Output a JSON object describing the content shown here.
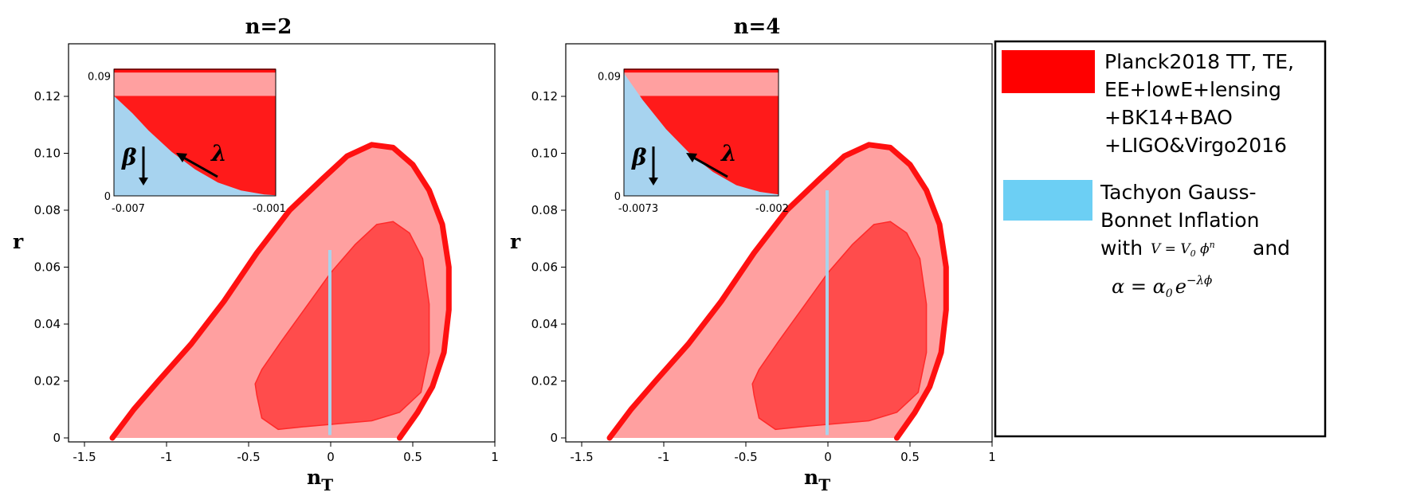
{
  "colors": {
    "outer_region": "#ffa0a0",
    "outer_border": "#ff1010",
    "inner_region": "#ff4c4c",
    "model_line": "#a9d3ec",
    "model_fill": "#a7d3ef",
    "legend_planck_swatch": "#ff0000",
    "legend_model_swatch": "#6ccff4"
  },
  "chart_data": [
    {
      "type": "area",
      "title": "n=2",
      "xlabel_base": "n",
      "xlabel_sub": "T",
      "ylabel": "r",
      "xlim": [
        -1.6,
        1.0
      ],
      "ylim": [
        0,
        0.12
      ],
      "x_ticks": [
        "-1.5",
        "-1",
        "-0.5",
        "0",
        "0.5",
        "1"
      ],
      "x_tick_values": [
        -1.5,
        -1,
        -0.5,
        0,
        0.5,
        1
      ],
      "y_ticks": [
        "0",
        "0.02",
        "0.04",
        "0.06",
        "0.08",
        "0.10",
        "0.12"
      ],
      "y_tick_values": [
        0,
        0.02,
        0.04,
        0.06,
        0.08,
        0.1,
        0.12
      ],
      "series": [
        {
          "role": "outer-contour",
          "points": [
            [
              -1.33,
              0.0
            ],
            [
              -1.2,
              0.01
            ],
            [
              -1.05,
              0.02
            ],
            [
              -0.85,
              0.033
            ],
            [
              -0.65,
              0.048
            ],
            [
              -0.45,
              0.065
            ],
            [
              -0.25,
              0.08
            ],
            [
              -0.05,
              0.091
            ],
            [
              0.1,
              0.099
            ],
            [
              0.25,
              0.103
            ],
            [
              0.38,
              0.102
            ],
            [
              0.5,
              0.096
            ],
            [
              0.6,
              0.087
            ],
            [
              0.68,
              0.075
            ],
            [
              0.72,
              0.06
            ],
            [
              0.72,
              0.045
            ],
            [
              0.69,
              0.03
            ],
            [
              0.62,
              0.018
            ],
            [
              0.53,
              0.009
            ],
            [
              0.42,
              0.0
            ]
          ]
        },
        {
          "role": "inner-contour",
          "points": [
            [
              -0.45,
              0.015
            ],
            [
              -0.42,
              0.007
            ],
            [
              -0.32,
              0.003
            ],
            [
              -0.15,
              0.004
            ],
            [
              0.05,
              0.005
            ],
            [
              0.25,
              0.006
            ],
            [
              0.42,
              0.009
            ],
            [
              0.55,
              0.016
            ],
            [
              0.6,
              0.03
            ],
            [
              0.6,
              0.047
            ],
            [
              0.56,
              0.063
            ],
            [
              0.48,
              0.072
            ],
            [
              0.38,
              0.076
            ],
            [
              0.28,
              0.075
            ],
            [
              0.15,
              0.068
            ],
            [
              0.0,
              0.058
            ],
            [
              -0.15,
              0.046
            ],
            [
              -0.3,
              0.034
            ],
            [
              -0.42,
              0.024
            ],
            [
              -0.46,
              0.019
            ]
          ]
        },
        {
          "role": "model-line",
          "points": [
            [
              -0.005,
              0.001
            ],
            [
              -0.005,
              0.066
            ]
          ]
        }
      ],
      "inset": {
        "x_ticks": [
          "-0.007",
          "-0.001"
        ],
        "x_tick_values": [
          -0.007,
          -0.001
        ],
        "y_ticks": [
          "0.09",
          "0"
        ],
        "y_tick_values": [
          0.09,
          0
        ],
        "xlim": [
          -0.0075,
          -0.0005
        ],
        "ylim": [
          0,
          0.095
        ],
        "curve_points": [
          [
            -0.0075,
            0.075
          ],
          [
            -0.0067,
            0.062
          ],
          [
            -0.006,
            0.049
          ],
          [
            -0.005,
            0.033
          ],
          [
            -0.004,
            0.02
          ],
          [
            -0.003,
            0.01
          ],
          [
            -0.002,
            0.004
          ],
          [
            -0.001,
            0.001
          ],
          [
            -0.0005,
            0.0005
          ]
        ],
        "inner_band": [
          0.0,
          0.075
        ],
        "outer_band": [
          0.075,
          0.094
        ],
        "beta_label": "β",
        "lambda_label": "λ"
      }
    },
    {
      "type": "area",
      "title": "n=4",
      "xlabel_base": "n",
      "xlabel_sub": "T",
      "ylabel": "r",
      "xlim": [
        -1.6,
        1.0
      ],
      "ylim": [
        0,
        0.12
      ],
      "x_ticks": [
        "-1.5",
        "-1",
        "-0.5",
        "0",
        "0.5",
        "1"
      ],
      "x_tick_values": [
        -1.5,
        -1,
        -0.5,
        0,
        0.5,
        1
      ],
      "y_ticks": [
        "0",
        "0.02",
        "0.04",
        "0.06",
        "0.08",
        "0.10",
        "0.12"
      ],
      "y_tick_values": [
        0,
        0.02,
        0.04,
        0.06,
        0.08,
        0.1,
        0.12
      ],
      "series": [
        {
          "role": "outer-contour",
          "points": [
            [
              -1.33,
              0.0
            ],
            [
              -1.2,
              0.01
            ],
            [
              -1.05,
              0.02
            ],
            [
              -0.85,
              0.033
            ],
            [
              -0.65,
              0.048
            ],
            [
              -0.45,
              0.065
            ],
            [
              -0.25,
              0.08
            ],
            [
              -0.05,
              0.091
            ],
            [
              0.1,
              0.099
            ],
            [
              0.25,
              0.103
            ],
            [
              0.38,
              0.102
            ],
            [
              0.5,
              0.096
            ],
            [
              0.6,
              0.087
            ],
            [
              0.68,
              0.075
            ],
            [
              0.72,
              0.06
            ],
            [
              0.72,
              0.045
            ],
            [
              0.69,
              0.03
            ],
            [
              0.62,
              0.018
            ],
            [
              0.53,
              0.009
            ],
            [
              0.42,
              0.0
            ]
          ]
        },
        {
          "role": "inner-contour",
          "points": [
            [
              -0.45,
              0.015
            ],
            [
              -0.42,
              0.007
            ],
            [
              -0.32,
              0.003
            ],
            [
              -0.15,
              0.004
            ],
            [
              0.05,
              0.005
            ],
            [
              0.25,
              0.006
            ],
            [
              0.42,
              0.009
            ],
            [
              0.55,
              0.016
            ],
            [
              0.6,
              0.03
            ],
            [
              0.6,
              0.047
            ],
            [
              0.56,
              0.063
            ],
            [
              0.48,
              0.072
            ],
            [
              0.38,
              0.076
            ],
            [
              0.28,
              0.075
            ],
            [
              0.15,
              0.068
            ],
            [
              0.0,
              0.058
            ],
            [
              -0.15,
              0.046
            ],
            [
              -0.3,
              0.034
            ],
            [
              -0.42,
              0.024
            ],
            [
              -0.46,
              0.019
            ]
          ]
        },
        {
          "role": "model-line",
          "points": [
            [
              -0.005,
              0.001
            ],
            [
              -0.005,
              0.087
            ]
          ]
        }
      ],
      "inset": {
        "x_ticks": [
          "-0.0073",
          "-0.002"
        ],
        "x_tick_values": [
          -0.0073,
          -0.002
        ],
        "y_ticks": [
          "0.09",
          "0"
        ],
        "y_tick_values": [
          0.09,
          0
        ],
        "xlim": [
          -0.0078,
          -0.0012
        ],
        "ylim": [
          0,
          0.095
        ],
        "curve_points": [
          [
            -0.0078,
            0.092
          ],
          [
            -0.007,
            0.072
          ],
          [
            -0.006,
            0.05
          ],
          [
            -0.005,
            0.032
          ],
          [
            -0.004,
            0.018
          ],
          [
            -0.003,
            0.008
          ],
          [
            -0.002,
            0.003
          ],
          [
            -0.0012,
            0.001
          ]
        ],
        "inner_band": [
          0.0,
          0.075
        ],
        "outer_band": [
          0.075,
          0.094
        ],
        "beta_label": "β",
        "lambda_label": "λ"
      }
    }
  ],
  "legend": {
    "planck_lines": [
      "Planck2018 TT, TE,",
      "EE+lowE+lensing",
      "+BK14+BAO",
      "+LIGO&Virgo2016"
    ],
    "model_lines": [
      "Tachyon Gauss-",
      "Bonnet Inflation",
      "with",
      "and"
    ],
    "potential_formula": {
      "lhs": "V = V",
      "sub": "0",
      "mid": " ϕ",
      "sup": "n"
    },
    "coupling_formula": {
      "lhs": "α = α",
      "sub": "0",
      "mid": "e",
      "sup": "−λϕ"
    }
  }
}
